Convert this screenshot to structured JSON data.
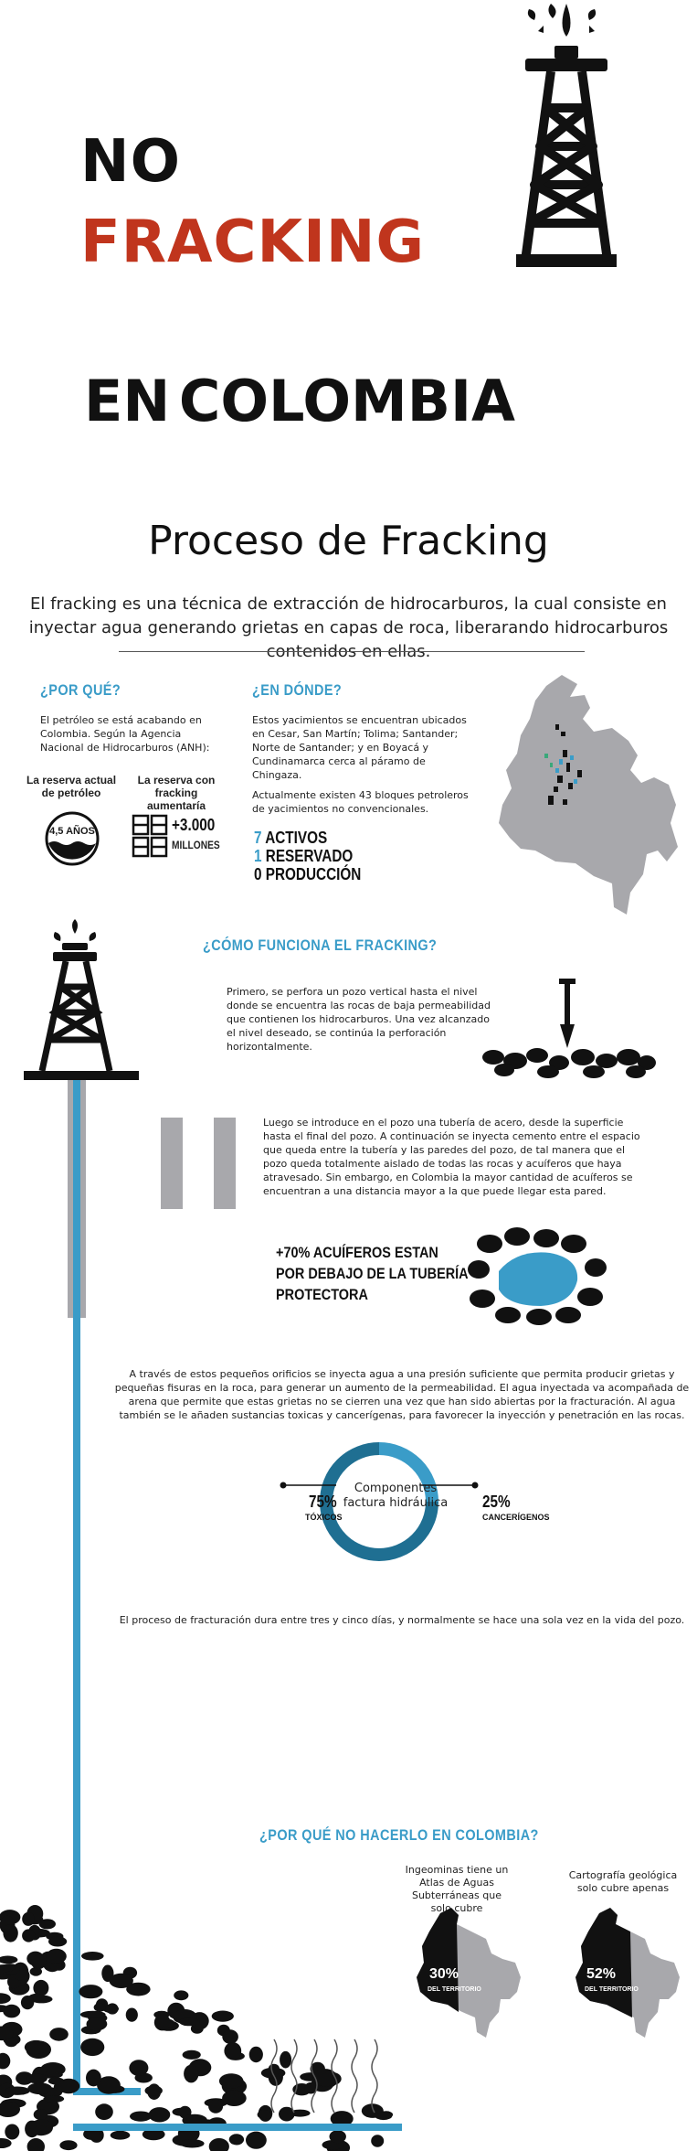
{
  "hero": {
    "line1": "NO",
    "line2": "FRACKING",
    "line3": "EN COLOMBIA"
  },
  "title": "Proceso de Fracking",
  "intro": "El fracking es una técnica de extracción de hidrocarburos, la cual consiste en inyectar agua generando grietas en capas de roca, liberarando hidrocarburos contenidos en ellas.",
  "por_que": {
    "heading": "¿POR QUÉ?",
    "text": "El petróleo se está acabando en Colombia. Según la Agencia Nacional de Hidrocarburos (ANH):",
    "reserve_label": "La reserva actual de petróleo",
    "reserve_value": "4,5 AÑOS",
    "fracking_label": "La reserva con fracking aumentaría",
    "fracking_value": "+3.000",
    "fracking_unit": "MILLONES"
  },
  "en_donde": {
    "heading": "¿EN DÓNDE?",
    "text1": "Estos yacimientos se encuentran ubicados en Cesar, San Martín; Tolima; Santander; Norte de Santander; y en Boyacá y Cundinamarca cerca al páramo de Chingaza.",
    "text2": "Actualmente existen 43 bloques petroleros de yacimientos no convencionales.",
    "legend": [
      {
        "num": "7",
        "label": "ACTIVOS"
      },
      {
        "num": "1",
        "label": "RESERVADO"
      },
      {
        "num": "0",
        "label": "PRODUCCIÓN"
      }
    ]
  },
  "como": {
    "heading": "¿CÓMO FUNCIONA EL FRACKING?",
    "step1": "Primero, se perfora un pozo vertical hasta el nivel donde se encuentra las rocas de baja permeabilidad que contienen los hidrocarburos. Una vez alcanzado el nivel deseado, se continúa la perforación horizontalmente.",
    "step2": "Luego se introduce en el pozo una tubería de acero, desde la superficie hasta el final del pozo. A continuación se inyecta cemento entre el espacio que queda entre la tubería y las paredes del pozo, de tal manera que el pozo queda totalmente aislado de todas las rocas y acuíferos que haya atravesado. Sin embargo, en Colombia la mayor cantidad de acuíferos se encuentran a una distancia mayor a la que puede llegar esta pared.",
    "stat_line1": "+70% ACUÍFEROS ESTAN",
    "stat_line2": "POR DEBAJO DE LA TUBERÍA",
    "stat_line3": "PROTECTORA",
    "step3": "A través de estos pequeños orificios se inyecta agua a una presión suficiente que permita producir grietas y pequeñas fisuras en la roca, para generar un aumento de la permeabilidad. El agua inyectada va acompañada de arena que permite que estas grietas no se cierren una vez que han sido abiertas por la fracturación. Al agua también se le añaden sustancias toxicas y cancerígenas, para favorecer la inyección y penetración en las rocas.",
    "donut_label_1": "Componentes",
    "donut_label_2": "factura hidráulica",
    "toxic_pct": "75%",
    "toxic_label": "TÓXICOS",
    "cancer_pct": "25%",
    "cancer_label": "CANCERÍGENOS",
    "duration": "El proceso de fracturación dura entre tres y cinco días, y normalmente se hace una sola vez en la vida del pozo."
  },
  "porque_no": {
    "heading": "¿POR QUÉ NO HACERLO EN COLOMBIA?",
    "left_note": "Ingeominas tiene un Atlas de Aguas Subterráneas que solo cubre",
    "left_pct": "30%",
    "left_sub": "DEL TERRITORIO",
    "right_note": "Cartografía geológica solo cubre apenas",
    "right_pct": "52%",
    "right_sub": "DEL TERRITORIO"
  },
  "colors": {
    "accent": "#3a9cc8",
    "red": "#c0351d",
    "dark": "#111111",
    "gray": "#a8a8ac"
  },
  "chart_data": {
    "type": "pie",
    "categories": [
      "TÓXICOS",
      "CANCERÍGENOS"
    ],
    "values": [
      75,
      25
    ],
    "title": "Componentes factura hidráulica"
  }
}
